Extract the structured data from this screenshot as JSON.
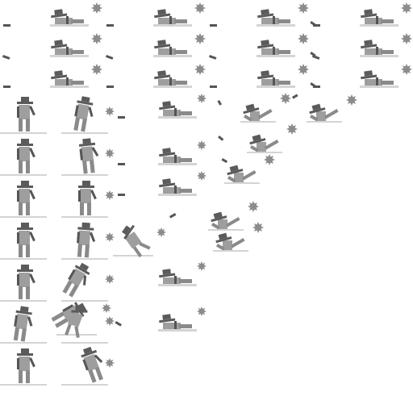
{
  "sheet": {
    "title": "",
    "colors": {
      "hat": "#5b5b5b",
      "body": "#9e9e9e",
      "limb": "#8a8a8a",
      "dark": "#555555",
      "ground": "#d4d4d4",
      "burst": "#8c8c8c",
      "debris": "#555555"
    },
    "groups": [
      {
        "id": "lying-top-grid",
        "pose": "lying",
        "frames": 12
      },
      {
        "id": "standing-column-a",
        "pose": "standing",
        "frames": 7
      },
      {
        "id": "standing-column-b",
        "pose": "standing-hit",
        "frames": 7
      },
      {
        "id": "lying-middle",
        "pose": "lying",
        "frames": 5
      },
      {
        "id": "sitting-right",
        "pose": "sitting",
        "frames": 5
      },
      {
        "id": "falling",
        "pose": "falling",
        "frames": 3
      }
    ]
  }
}
